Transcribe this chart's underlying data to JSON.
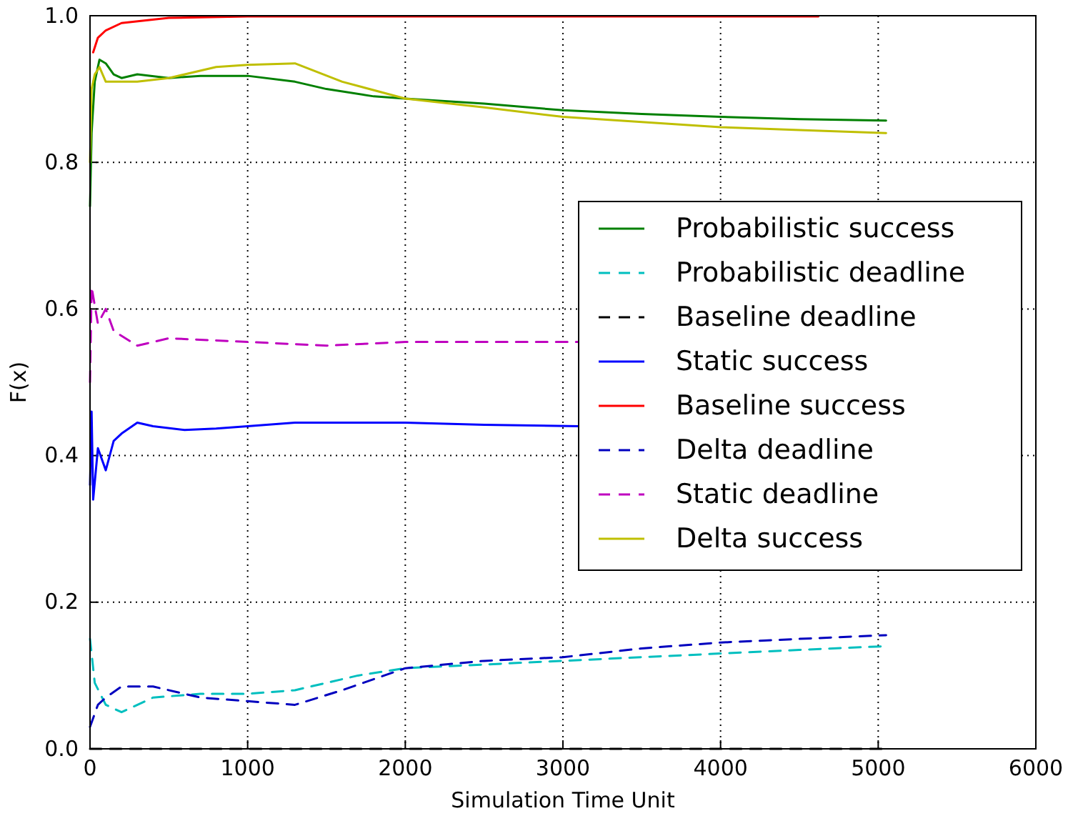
{
  "chart_data": {
    "type": "line",
    "xlabel": "Simulation Time Unit",
    "ylabel": "F(x)",
    "xlim": [
      0,
      6000
    ],
    "ylim": [
      0,
      1
    ],
    "xticks": [
      0,
      1000,
      2000,
      3000,
      4000,
      5000,
      6000
    ],
    "yticks": [
      {
        "value": 0,
        "label": "0.0"
      },
      {
        "value": 0.2,
        "label": "0.2"
      },
      {
        "value": 0.4,
        "label": "0.4"
      },
      {
        "value": 0.6,
        "label": "0.6"
      },
      {
        "value": 0.8,
        "label": "0.8"
      },
      {
        "value": 1,
        "label": "1.0"
      }
    ],
    "grid": true,
    "legend": "right",
    "marker": "none",
    "series": [
      {
        "name": "Probabilistic success",
        "color": "#008000",
        "line_style": "solid",
        "x": [
          0,
          10,
          30,
          60,
          100,
          150,
          200,
          300,
          500,
          700,
          1000,
          1300,
          1500,
          1800,
          2000,
          2500,
          3000,
          3500,
          4000,
          4500,
          5050
        ],
        "values": [
          0.74,
          0.84,
          0.91,
          0.94,
          0.935,
          0.92,
          0.915,
          0.92,
          0.915,
          0.918,
          0.918,
          0.91,
          0.9,
          0.89,
          0.887,
          0.88,
          0.871,
          0.866,
          0.862,
          0.859,
          0.857
        ]
      },
      {
        "name": "Probabilistic deadline",
        "color": "#00bfbf",
        "line_style": "dashed",
        "x": [
          0,
          30,
          100,
          200,
          400,
          700,
          1000,
          1300,
          1700,
          2000,
          2500,
          3000,
          3500,
          4000,
          4500,
          5050
        ],
        "values": [
          0.15,
          0.09,
          0.06,
          0.05,
          0.07,
          0.075,
          0.075,
          0.08,
          0.1,
          0.11,
          0.115,
          0.12,
          0.125,
          0.13,
          0.135,
          0.14
        ]
      },
      {
        "name": "Baseline deadline",
        "color": "#000000",
        "line_style": "dashed",
        "x": [
          0,
          1000,
          2000,
          3000,
          4000,
          5050
        ],
        "values": [
          0,
          0,
          0,
          0,
          0,
          0
        ]
      },
      {
        "name": "Static success",
        "color": "#0000ff",
        "line_style": "solid",
        "x": [
          0,
          10,
          20,
          50,
          100,
          150,
          200,
          300,
          400,
          600,
          800,
          1000,
          1300,
          1600,
          2000,
          2500,
          3100
        ],
        "values": [
          0.36,
          0.46,
          0.34,
          0.41,
          0.38,
          0.42,
          0.43,
          0.445,
          0.44,
          0.435,
          0.437,
          0.44,
          0.445,
          0.445,
          0.445,
          0.442,
          0.44
        ]
      },
      {
        "name": "Baseline success",
        "color": "#ff0000",
        "line_style": "solid",
        "x": [
          20,
          50,
          100,
          200,
          500,
          1000,
          2000,
          3000,
          4000,
          4620
        ],
        "values": [
          0.95,
          0.97,
          0.98,
          0.99,
          0.997,
          0.999,
          0.999,
          0.999,
          0.999,
          0.999
        ]
      },
      {
        "name": "Delta deadline",
        "color": "#0000bf",
        "line_style": "dashed",
        "x": [
          0,
          50,
          100,
          200,
          400,
          700,
          1000,
          1300,
          1600,
          2000,
          2500,
          3000,
          3500,
          4000,
          4500,
          5050
        ],
        "values": [
          0.03,
          0.06,
          0.07,
          0.085,
          0.085,
          0.07,
          0.065,
          0.06,
          0.08,
          0.11,
          0.12,
          0.125,
          0.137,
          0.145,
          0.15,
          0.155
        ]
      },
      {
        "name": "Static deadline",
        "color": "#bf00bf",
        "line_style": "dashed",
        "x": [
          0,
          10,
          50,
          100,
          150,
          300,
          500,
          1000,
          1500,
          2000,
          2500,
          3100
        ],
        "values": [
          0.5,
          0.63,
          0.58,
          0.6,
          0.57,
          0.55,
          0.56,
          0.555,
          0.55,
          0.555,
          0.555,
          0.555
        ]
      },
      {
        "name": "Delta success",
        "color": "#bfbf00",
        "line_style": "solid",
        "x": [
          0,
          10,
          30,
          60,
          100,
          150,
          300,
          500,
          800,
          1000,
          1300,
          1600,
          2000,
          2500,
          3000,
          3500,
          4000,
          4500,
          5050
        ],
        "values": [
          0.8,
          0.9,
          0.92,
          0.93,
          0.91,
          0.91,
          0.91,
          0.915,
          0.93,
          0.933,
          0.935,
          0.91,
          0.887,
          0.875,
          0.862,
          0.855,
          0.848,
          0.844,
          0.84
        ]
      }
    ]
  }
}
